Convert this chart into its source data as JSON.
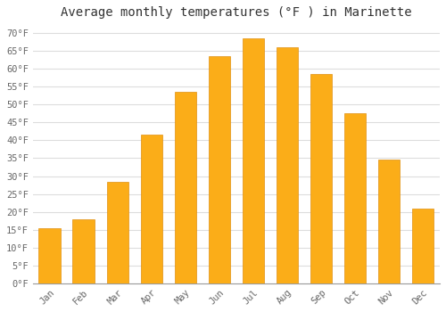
{
  "title": "Average monthly temperatures (°F ) in Marinette",
  "months": [
    "Jan",
    "Feb",
    "Mar",
    "Apr",
    "May",
    "Jun",
    "Jul",
    "Aug",
    "Sep",
    "Oct",
    "Nov",
    "Dec"
  ],
  "temperatures": [
    15.5,
    18.0,
    28.5,
    41.5,
    53.5,
    63.5,
    68.5,
    66.0,
    58.5,
    47.5,
    34.5,
    21.0
  ],
  "bar_color": "#FBAD18",
  "bar_edge_color": "#E09010",
  "background_color": "#FFFFFF",
  "grid_color": "#DDDDDD",
  "ylim": [
    0,
    72
  ],
  "yticks": [
    0,
    5,
    10,
    15,
    20,
    25,
    30,
    35,
    40,
    45,
    50,
    55,
    60,
    65,
    70
  ],
  "title_fontsize": 10,
  "tick_fontsize": 7.5,
  "font_family": "monospace"
}
